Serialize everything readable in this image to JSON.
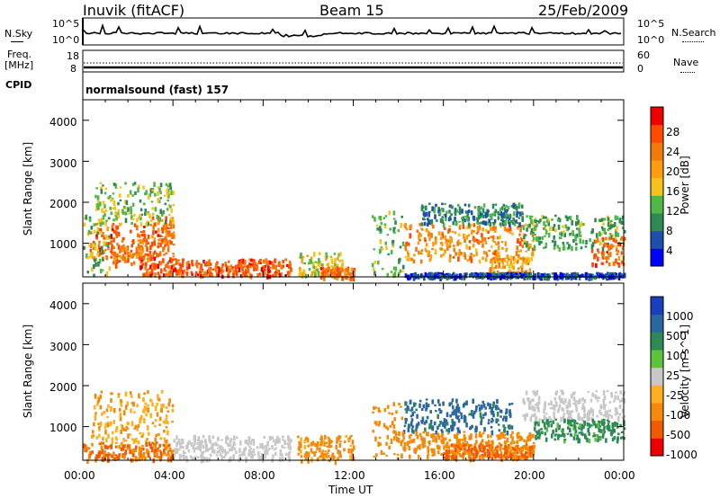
{
  "header": {
    "station": "Inuvik (fitACF)",
    "beam": "Beam 15",
    "date": "25/Feb/2009"
  },
  "top_panel": {
    "left_label": "N.Sky",
    "right_label": "N.Search",
    "left_ticks": [
      "10^5",
      "10^0"
    ],
    "right_ticks": [
      "10^5",
      "10^0"
    ]
  },
  "freq_panel": {
    "left_label_1": "Freq.",
    "left_label_2": "[MHz]",
    "right_label": "Nave",
    "left_ticks": [
      "18",
      "8"
    ],
    "right_ticks": [
      "60",
      "0"
    ]
  },
  "cpid": {
    "label": "CPID",
    "value": "normalsound (fast) 157"
  },
  "colors": {
    "power": [
      "#0000ff",
      "#1f4fae",
      "#2e8a54",
      "#50b848",
      "#f5c31b",
      "#ff9c10",
      "#f27a0a",
      "#ff4b00",
      "#ee0000"
    ],
    "velocity": [
      "#1a3fbd",
      "#2a66a0",
      "#2e8a54",
      "#5ec33c",
      "#c8c8c8",
      "#ffb020",
      "#f58a0a",
      "#f05a00",
      "#ee0000"
    ]
  },
  "chart_data": [
    {
      "type": "heatmap",
      "name": "power",
      "xlabel": "",
      "ylabel": "Slant Range [km]",
      "xlim": [
        0,
        24
      ],
      "ylim": [
        180,
        4500
      ],
      "yticks": [
        1000,
        2000,
        3000,
        4000
      ],
      "colorbar": {
        "label": "Power [dB]",
        "range": [
          0,
          32
        ],
        "ticks": [
          4,
          8,
          12,
          16,
          20,
          24,
          28
        ]
      },
      "regions": [
        {
          "t": [
            0.3,
            4.0
          ],
          "r": [
            650,
            1500
          ],
          "v": 28
        },
        {
          "t": [
            0.0,
            1.2
          ],
          "r": [
            250,
            1750
          ],
          "v": 14
        },
        {
          "t": [
            1.2,
            3.0
          ],
          "r": [
            500,
            950
          ],
          "v": 26
        },
        {
          "t": [
            3.0,
            4.0
          ],
          "r": [
            900,
            1700
          ],
          "v": 26
        },
        {
          "t": [
            2.5,
            9.2
          ],
          "r": [
            230,
            640
          ],
          "v": 29
        },
        {
          "t": [
            0.5,
            4.0
          ],
          "r": [
            1500,
            2500
          ],
          "v": 15
        },
        {
          "t": [
            9.5,
            11.5
          ],
          "r": [
            250,
            800
          ],
          "v": 18
        },
        {
          "t": [
            10.5,
            12.0
          ],
          "r": [
            180,
            450
          ],
          "v": 28
        },
        {
          "t": [
            12.8,
            14.2
          ],
          "r": [
            250,
            1900
          ],
          "v": 14
        },
        {
          "t": [
            14.2,
            20.0
          ],
          "r": [
            600,
            1500
          ],
          "v": 24
        },
        {
          "t": [
            15.0,
            19.5
          ],
          "r": [
            1500,
            2000
          ],
          "v": 9
        },
        {
          "t": [
            18.0,
            19.8
          ],
          "r": [
            250,
            700
          ],
          "v": 22
        },
        {
          "t": [
            19.5,
            24.0
          ],
          "r": [
            900,
            1700
          ],
          "v": 13
        },
        {
          "t": [
            22.5,
            24.0
          ],
          "r": [
            500,
            1200
          ],
          "v": 28
        },
        {
          "t": [
            14.2,
            24.0
          ],
          "r": [
            200,
            300
          ],
          "v": 6
        }
      ]
    },
    {
      "type": "heatmap",
      "name": "velocity",
      "xlabel": "Time UT",
      "ylabel": "Slant Range [km]",
      "xlim": [
        0,
        24
      ],
      "ylim": [
        180,
        4500
      ],
      "xticks": [
        "00:00",
        "04:00",
        "08:00",
        "12:00",
        "16:00",
        "20:00",
        "00:00"
      ],
      "yticks": [
        1000,
        2000,
        3000,
        4000
      ],
      "colorbar": {
        "label": "Velocity [m s^-1]",
        "levels": [
          "1000",
          "500",
          "100",
          "25",
          "-25",
          "-100",
          "-500",
          "-1000"
        ]
      },
      "regions": [
        {
          "t": [
            0.3,
            4.0
          ],
          "r": [
            650,
            1900
          ],
          "v": -100
        },
        {
          "t": [
            0.0,
            4.0
          ],
          "r": [
            200,
            650
          ],
          "v": -500
        },
        {
          "t": [
            4.0,
            9.2
          ],
          "r": [
            230,
            800
          ],
          "v": 10
        },
        {
          "t": [
            9.5,
            12.0
          ],
          "r": [
            180,
            800
          ],
          "v": -150
        },
        {
          "t": [
            14.2,
            19.0
          ],
          "r": [
            900,
            1700
          ],
          "v": 700
        },
        {
          "t": [
            14.2,
            20.0
          ],
          "r": [
            300,
            900
          ],
          "v": -200
        },
        {
          "t": [
            16.0,
            20.0
          ],
          "r": [
            250,
            600
          ],
          "v": -600
        },
        {
          "t": [
            19.5,
            24.0
          ],
          "r": [
            1200,
            1900
          ],
          "v": 0
        },
        {
          "t": [
            20.0,
            24.0
          ],
          "r": [
            700,
            1200
          ],
          "v": 150
        },
        {
          "t": [
            12.8,
            14.2
          ],
          "r": [
            250,
            1600
          ],
          "v": -300
        }
      ]
    }
  ]
}
